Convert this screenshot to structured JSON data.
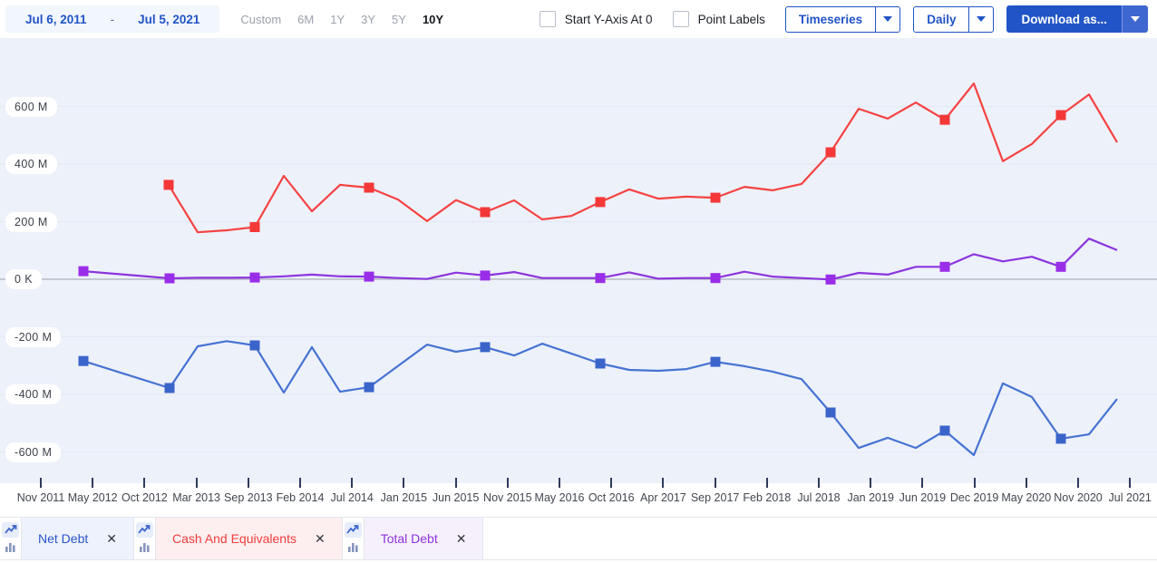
{
  "toolbar": {
    "date_range": {
      "from": "Jul 6, 2011",
      "separator": "-",
      "to": "Jul 5, 2021"
    },
    "range_buttons": [
      {
        "label": "Custom",
        "active": false
      },
      {
        "label": "6M",
        "active": false
      },
      {
        "label": "1Y",
        "active": false
      },
      {
        "label": "3Y",
        "active": false
      },
      {
        "label": "5Y",
        "active": false
      },
      {
        "label": "10Y",
        "active": true
      }
    ],
    "start_y_axis_checkbox": {
      "label": "Start Y-Axis At 0",
      "checked": false
    },
    "point_labels_checkbox": {
      "label": "Point Labels",
      "checked": false
    },
    "timeseries_dropdown": {
      "value": "Timeseries"
    },
    "frequency_dropdown": {
      "value": "Daily"
    },
    "download_button": {
      "label": "Download as..."
    }
  },
  "chart_data": {
    "type": "line",
    "grid": true,
    "units": "millions",
    "ylim": [
      -708,
      838
    ],
    "y_axis": {
      "ticks": [
        {
          "label": "600 M",
          "value": 600
        },
        {
          "label": "400 M",
          "value": 400
        },
        {
          "label": "200 M",
          "value": 200
        },
        {
          "label": "0 K",
          "value": 0
        },
        {
          "label": "-200 M",
          "value": -200
        },
        {
          "label": "-400 M",
          "value": -400
        },
        {
          "label": "-600 M",
          "value": -600
        }
      ]
    },
    "x_axis": {
      "tick_labels": [
        "Nov 2011",
        "May 2012",
        "Oct 2012",
        "Mar 2013",
        "Sep 2013",
        "Feb 2014",
        "Jul 2014",
        "Jan 2015",
        "Jun 2015",
        "Nov 2015",
        "May 2016",
        "Oct 2016",
        "Apr 2017",
        "Sep 2017",
        "Feb 2018",
        "Jul 2018",
        "Jan 2019",
        "Jun 2019",
        "Dec 2019",
        "May 2020",
        "Nov 2020",
        "Jul 2021"
      ]
    },
    "series": [
      {
        "id": "net-debt",
        "name": "Net Debt",
        "color": "#4673d2",
        "marker_color": "#3a64ca",
        "points_format": [
          "x_px",
          "value_millions",
          "marker"
        ],
        "points": [
          [
            92,
            -284,
            1
          ],
          [
            187,
            -378,
            1
          ],
          [
            218,
            -233,
            0
          ],
          [
            250,
            -215,
            0
          ],
          [
            281,
            -230,
            1
          ],
          [
            313,
            -394,
            0
          ],
          [
            344,
            -236,
            0
          ],
          [
            375,
            -391,
            0
          ],
          [
            407,
            -375,
            1
          ],
          [
            439,
            -301,
            0
          ],
          [
            471,
            -227,
            0
          ],
          [
            503,
            -252,
            0
          ],
          [
            535,
            -236,
            1
          ],
          [
            567,
            -265,
            0
          ],
          [
            598,
            -224,
            0
          ],
          [
            630,
            -258,
            0
          ],
          [
            662,
            -293,
            1
          ],
          [
            694,
            -315,
            0
          ],
          [
            726,
            -318,
            0
          ],
          [
            757,
            -312,
            0
          ],
          [
            789,
            -287,
            1
          ],
          [
            821,
            -302,
            0
          ],
          [
            852,
            -321,
            0
          ],
          [
            884,
            -347,
            0
          ],
          [
            916,
            -463,
            1
          ],
          [
            947,
            -586,
            0
          ],
          [
            979,
            -551,
            0
          ],
          [
            1010,
            -586,
            0
          ],
          [
            1042,
            -526,
            1
          ],
          [
            1074,
            -611,
            0
          ],
          [
            1106,
            -362,
            0
          ],
          [
            1138,
            -409,
            0
          ],
          [
            1170,
            -554,
            1
          ],
          [
            1201,
            -539,
            0
          ],
          [
            1232,
            -416,
            0
          ]
        ]
      },
      {
        "id": "cash-and-equivalents",
        "name": "Cash And Equivalents",
        "color": "#f54242",
        "marker_color": "#f43838",
        "points_format": [
          "x_px",
          "value_millions",
          "marker"
        ],
        "points": [
          [
            186,
            328,
            1
          ],
          [
            218,
            163,
            0
          ],
          [
            250,
            170,
            0
          ],
          [
            281,
            181,
            1
          ],
          [
            313,
            359,
            0
          ],
          [
            344,
            236,
            0
          ],
          [
            375,
            328,
            0
          ],
          [
            407,
            318,
            1
          ],
          [
            439,
            277,
            0
          ],
          [
            471,
            202,
            0
          ],
          [
            503,
            275,
            0
          ],
          [
            535,
            233,
            1
          ],
          [
            567,
            274,
            0
          ],
          [
            598,
            208,
            0
          ],
          [
            630,
            220,
            0
          ],
          [
            662,
            268,
            1
          ],
          [
            694,
            312,
            0
          ],
          [
            726,
            280,
            0
          ],
          [
            757,
            287,
            0
          ],
          [
            789,
            283,
            1
          ],
          [
            821,
            321,
            0
          ],
          [
            852,
            309,
            0
          ],
          [
            884,
            331,
            0
          ],
          [
            916,
            441,
            1
          ],
          [
            947,
            592,
            0
          ],
          [
            979,
            558,
            0
          ],
          [
            1010,
            614,
            0
          ],
          [
            1042,
            554,
            1
          ],
          [
            1074,
            680,
            0
          ],
          [
            1106,
            410,
            0
          ],
          [
            1138,
            470,
            0
          ],
          [
            1170,
            570,
            1
          ],
          [
            1201,
            642,
            0
          ],
          [
            1232,
            476,
            0
          ]
        ]
      },
      {
        "id": "total-debt",
        "name": "Total Debt",
        "color": "#8b35de",
        "marker_color": "#9a2de8",
        "points_format": [
          "x_px",
          "value_millions",
          "marker"
        ],
        "points": [
          [
            92,
            28,
            1
          ],
          [
            187,
            3,
            1
          ],
          [
            218,
            5,
            0
          ],
          [
            250,
            5,
            0
          ],
          [
            281,
            6,
            1
          ],
          [
            313,
            10,
            0
          ],
          [
            344,
            16,
            0
          ],
          [
            375,
            10,
            0
          ],
          [
            407,
            9,
            1
          ],
          [
            439,
            4,
            0
          ],
          [
            471,
            1,
            0
          ],
          [
            503,
            23,
            0
          ],
          [
            535,
            13,
            1
          ],
          [
            567,
            25,
            0
          ],
          [
            598,
            4,
            0
          ],
          [
            630,
            4,
            0
          ],
          [
            662,
            4,
            1
          ],
          [
            694,
            24,
            0
          ],
          [
            726,
            2,
            0
          ],
          [
            757,
            4,
            0
          ],
          [
            789,
            4,
            1
          ],
          [
            821,
            26,
            0
          ],
          [
            852,
            9,
            0
          ],
          [
            884,
            4,
            0
          ],
          [
            916,
            -1,
            1
          ],
          [
            947,
            22,
            0
          ],
          [
            979,
            16,
            0
          ],
          [
            1010,
            43,
            0
          ],
          [
            1042,
            43,
            1
          ],
          [
            1074,
            87,
            0
          ],
          [
            1106,
            62,
            0
          ],
          [
            1138,
            78,
            0
          ],
          [
            1170,
            43,
            1
          ],
          [
            1201,
            141,
            0
          ],
          [
            1232,
            101,
            0
          ]
        ]
      }
    ]
  },
  "legend": {
    "items": [
      {
        "label": "Net Debt",
        "close": "✕",
        "text_color": "#2b56c9",
        "bg": "#edf2fc"
      },
      {
        "label": "Cash And Equivalents",
        "close": "✕",
        "text_color": "#f23c3c",
        "bg": "#fdefef"
      },
      {
        "label": "Total Debt",
        "close": "✕",
        "text_color": "#8f33e0",
        "bg": "#f6f0fd"
      }
    ]
  },
  "colors": {
    "accent_blue": "#2154c6",
    "chart_background": "#edf1fa",
    "gridline": "#e2e8f4",
    "zero_line": "#b6bac5"
  }
}
